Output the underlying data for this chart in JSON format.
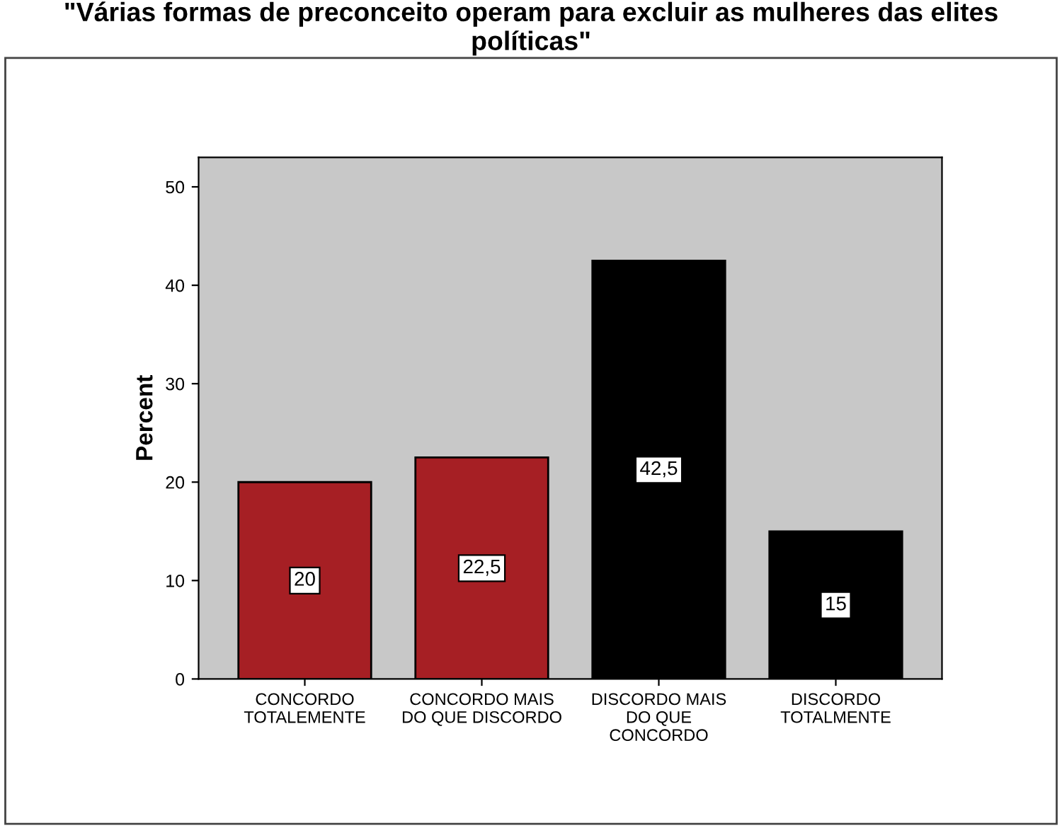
{
  "chart_data": {
    "type": "bar",
    "title": "\"Várias formas de preconceito operam para excluir as mulheres das elites\npolíticas\"",
    "ylabel": "Percent",
    "categories": [
      "CONCORDO\nTOTALEMENTE",
      "CONCORDO MAIS\nDO QUE DISCORDO",
      "DISCORDO MAIS\nDO QUE\nCONCORDO",
      "DISCORDO\nTOTALMENTE"
    ],
    "values": [
      20,
      22.5,
      42.5,
      15
    ],
    "colors": [
      "#a61f24",
      "#a61f24",
      "#000000",
      "#000000"
    ],
    "value_labels": [
      "20",
      "22,5",
      "42,5",
      "15"
    ],
    "ylim": [
      0,
      53
    ],
    "yticks": [
      0,
      10,
      20,
      30,
      40,
      50
    ],
    "grid": false,
    "legend": false
  }
}
